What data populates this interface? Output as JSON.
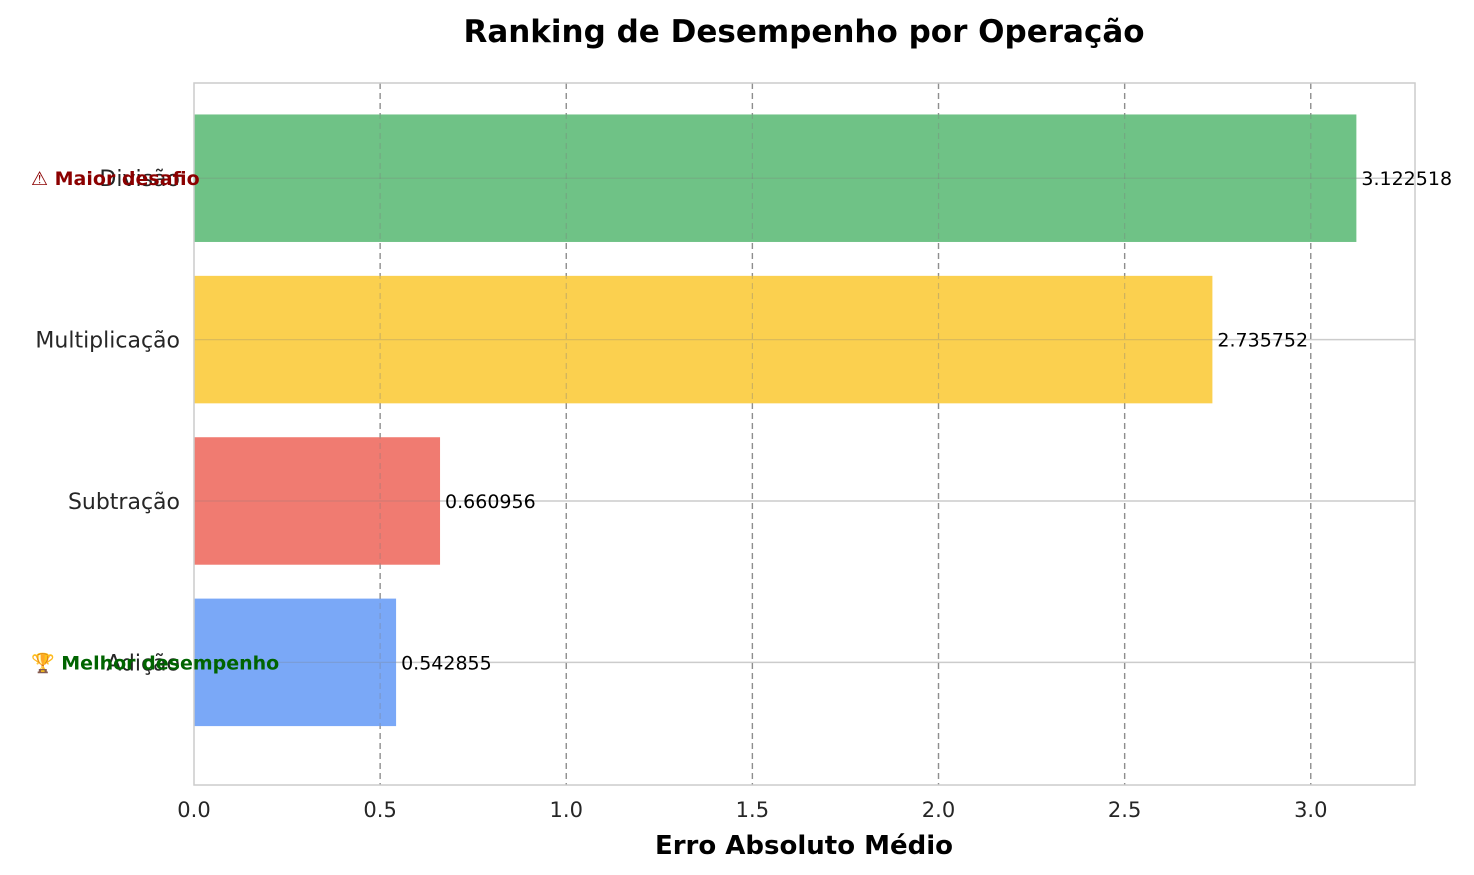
{
  "chart_data": {
    "type": "bar",
    "orientation": "horizontal",
    "title": "Ranking de Desempenho por Operação",
    "xlabel": "Erro Absoluto Médio",
    "ylabel": "",
    "xlim": [
      0,
      3.28
    ],
    "xticks": [
      "0.0",
      "0.5",
      "1.0",
      "1.5",
      "2.0",
      "2.5",
      "3.0"
    ],
    "categories": [
      "Divisão",
      "Multiplicação",
      "Subtração",
      "Adição"
    ],
    "values": [
      3.122518,
      2.735752,
      0.660956,
      0.542855
    ],
    "value_labels": [
      "3.122518",
      "2.735752",
      "0.660956",
      "0.542855"
    ],
    "colors": [
      "#6fc286",
      "#fbd04f",
      "#f07b71",
      "#7aa8f7"
    ],
    "grid": true,
    "annotations": [
      {
        "text": "⚠ Maior desafio",
        "category": "Divisão",
        "color": "#8b0000"
      },
      {
        "text": "🏆 Melhor desempenho",
        "category": "Adição",
        "color": "#006400"
      }
    ]
  }
}
